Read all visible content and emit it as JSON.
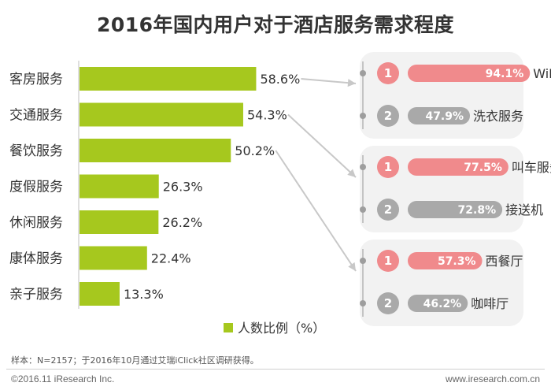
{
  "chart_data": {
    "type": "bar",
    "orientation": "horizontal",
    "title": "2016年国内用户对于酒店服务需求程度",
    "categories": [
      "客房服务",
      "交通服务",
      "餐饮服务",
      "度假服务",
      "休闲服务",
      "康体服务",
      "亲子服务"
    ],
    "values": [
      58.6,
      54.3,
      50.2,
      26.3,
      26.2,
      22.4,
      13.3
    ],
    "value_labels": [
      "58.6%",
      "54.3%",
      "50.2%",
      "26.3%",
      "26.2%",
      "22.4%",
      "13.3%"
    ],
    "legend": "人数比例（%）",
    "bar_color": "#a6c81e",
    "grid": false,
    "legend_position": "bottom",
    "breakdowns": [
      {
        "parent": "客房服务",
        "items": [
          {
            "rank": "1",
            "label": "WiFi",
            "value": 94.1,
            "value_label": "94.1%"
          },
          {
            "rank": "2",
            "label": "洗衣服务",
            "value": 47.9,
            "value_label": "47.9%"
          }
        ]
      },
      {
        "parent": "交通服务",
        "items": [
          {
            "rank": "1",
            "label": "叫车服务",
            "value": 77.5,
            "value_label": "77.5%"
          },
          {
            "rank": "2",
            "label": "接送机",
            "value": 72.8,
            "value_label": "72.8%"
          }
        ]
      },
      {
        "parent": "餐饮服务",
        "items": [
          {
            "rank": "1",
            "label": "西餐厅",
            "value": 57.3,
            "value_label": "57.3%"
          },
          {
            "rank": "2",
            "label": "咖啡厅",
            "value": 46.2,
            "value_label": "46.2%"
          }
        ]
      }
    ]
  },
  "colors": {
    "rank1": "#f08a8c",
    "rank2": "#a9a9a9",
    "group_bg": "#f2f2f2",
    "connector": "#c8c8c8"
  },
  "footer": {
    "note": "样本：N=2157；于2016年10月通过艾瑞iClick社区调研获得。",
    "copyright": "©2016.11 iResearch Inc.",
    "url": "www.iresearch.com.cn"
  }
}
